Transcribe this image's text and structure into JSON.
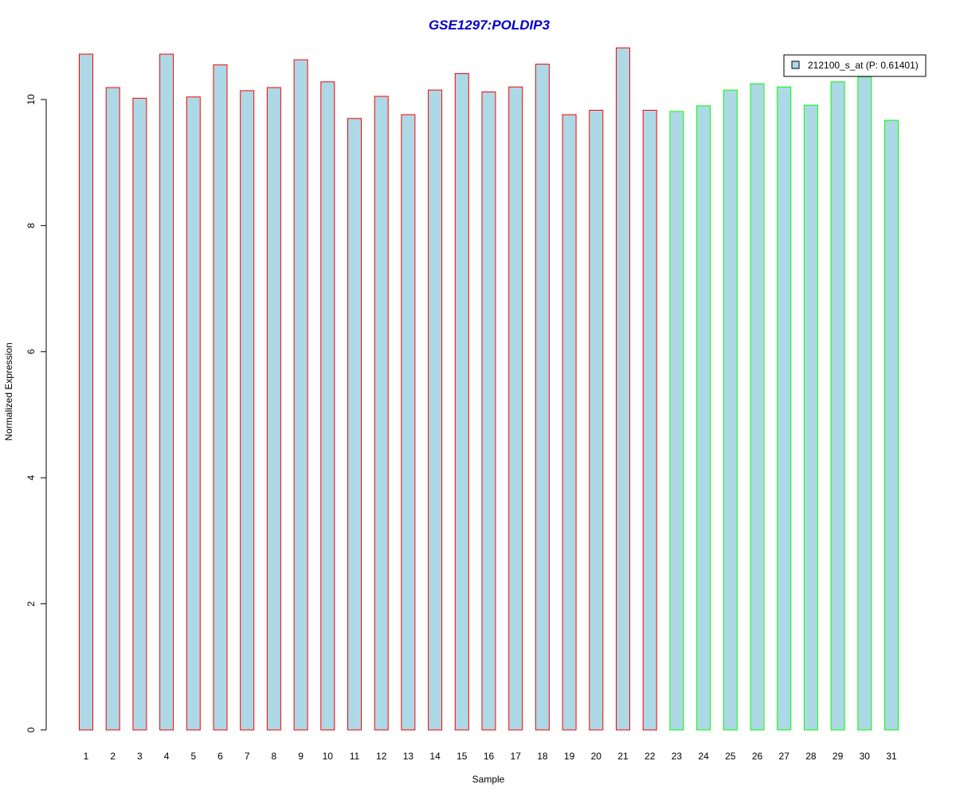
{
  "chart_data": {
    "type": "bar",
    "title": "GSE1297:POLDIP3",
    "xlabel": "Sample",
    "ylabel": "Normalized Expression",
    "ylim": [
      0,
      10.8
    ],
    "yticks": [
      0,
      2,
      4,
      6,
      8,
      10
    ],
    "categories": [
      "1",
      "2",
      "3",
      "4",
      "5",
      "6",
      "7",
      "8",
      "9",
      "10",
      "11",
      "12",
      "13",
      "14",
      "15",
      "16",
      "17",
      "18",
      "19",
      "20",
      "21",
      "22",
      "23",
      "24",
      "25",
      "26",
      "27",
      "28",
      "29",
      "30",
      "31"
    ],
    "series": [
      {
        "name": "212100_s_at (P: 0.61401)",
        "values": [
          10.72,
          10.19,
          10.02,
          10.72,
          10.04,
          10.55,
          10.14,
          10.19,
          10.63,
          10.28,
          9.7,
          10.05,
          9.76,
          10.15,
          10.41,
          10.12,
          10.2,
          10.56,
          9.76,
          9.83,
          10.82,
          9.83,
          9.81,
          9.9,
          10.15,
          10.25,
          10.2,
          9.91,
          10.28,
          10.36,
          9.67
        ]
      }
    ],
    "bar_fill": "#ADD8E6",
    "group_outline_colors": [
      "#FF0000",
      "#FF0000",
      "#FF0000",
      "#FF0000",
      "#FF0000",
      "#FF0000",
      "#FF0000",
      "#FF0000",
      "#FF0000",
      "#FF0000",
      "#FF0000",
      "#FF0000",
      "#FF0000",
      "#FF0000",
      "#FF0000",
      "#FF0000",
      "#FF0000",
      "#FF0000",
      "#FF0000",
      "#FF0000",
      "#FF0000",
      "#FF0000",
      "#00FF00",
      "#00FF00",
      "#00FF00",
      "#00FF00",
      "#00FF00",
      "#00FF00",
      "#00FF00",
      "#00FF00",
      "#00FF00"
    ],
    "title_color": "#0000CC",
    "legend": {
      "label": "212100_s_at (P: 0.61401)",
      "position": "top-right"
    },
    "grid": false
  }
}
